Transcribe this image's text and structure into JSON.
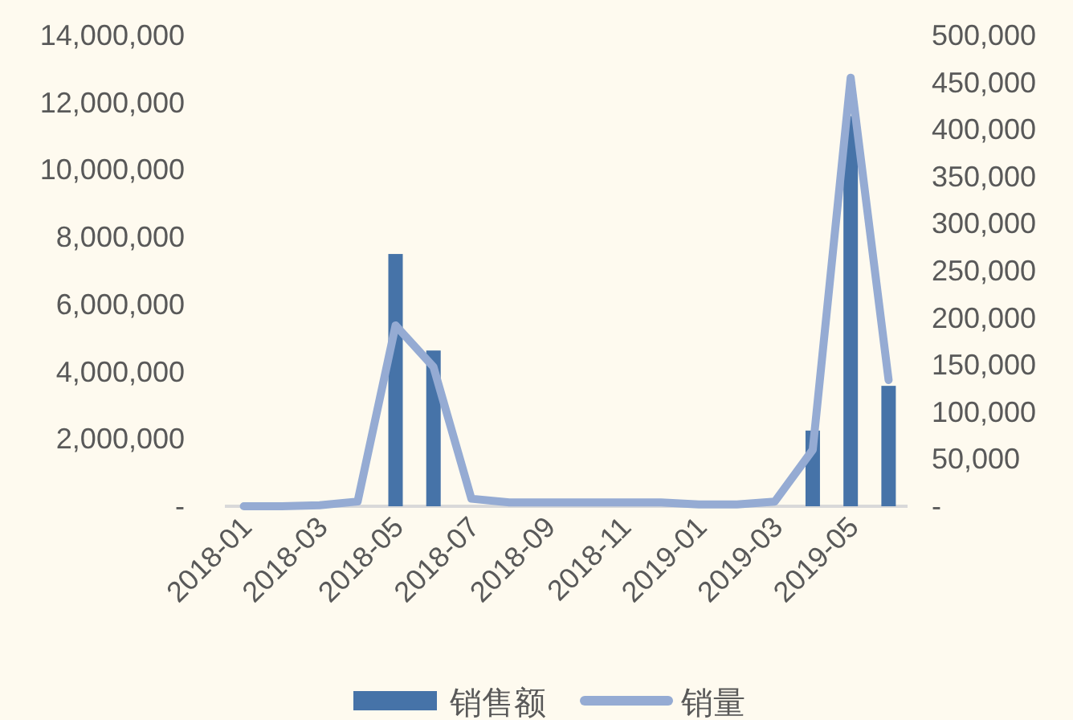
{
  "chart_data": {
    "type": "bar",
    "categories": [
      "2018-01",
      null,
      "2018-03",
      null,
      "2018-05",
      null,
      "2018-07",
      null,
      "2018-09",
      null,
      "2018-11",
      null,
      "2019-01",
      null,
      "2019-03",
      null,
      "2019-05",
      null
    ],
    "series": [
      {
        "name": "销售额",
        "color": "#4673a8",
        "values": [
          0,
          0,
          0,
          0,
          7500000,
          4630000,
          0,
          0,
          0,
          0,
          0,
          0,
          0,
          0,
          0,
          2250000,
          11600000,
          3580000
        ]
      },
      {
        "name": "销量",
        "type": "line",
        "axis": "y2",
        "color": "#95abd3",
        "values": [
          0,
          0,
          1000,
          5000,
          192000,
          148000,
          8000,
          4000,
          4000,
          4000,
          4000,
          4000,
          2000,
          2000,
          5000,
          60000,
          455000,
          134000
        ]
      }
    ],
    "ylim": [
      0,
      14000000
    ],
    "yticks": [
      {
        "value": 0,
        "label": "-"
      },
      {
        "value": 2000000,
        "label": "2,000,000"
      },
      {
        "value": 4000000,
        "label": "4,000,000"
      },
      {
        "value": 6000000,
        "label": "6,000,000"
      },
      {
        "value": 8000000,
        "label": "8,000,000"
      },
      {
        "value": 10000000,
        "label": "10,000,000"
      },
      {
        "value": 12000000,
        "label": "12,000,000"
      },
      {
        "value": 14000000,
        "label": "14,000,000"
      }
    ],
    "y2lim": [
      0,
      500000
    ],
    "y2ticks": [
      {
        "value": 0,
        "label": "-"
      },
      {
        "value": 50000,
        "label": "50,000"
      },
      {
        "value": 100000,
        "label": "100,000"
      },
      {
        "value": 150000,
        "label": "150,000"
      },
      {
        "value": 200000,
        "label": "200,000"
      },
      {
        "value": 250000,
        "label": "250,000"
      },
      {
        "value": 300000,
        "label": "300,000"
      },
      {
        "value": 350000,
        "label": "350,000"
      },
      {
        "value": 400000,
        "label": "400,000"
      },
      {
        "value": 450000,
        "label": "450,000"
      },
      {
        "value": 500000,
        "label": "500,000"
      }
    ],
    "legend": "bottom",
    "grid": false
  }
}
